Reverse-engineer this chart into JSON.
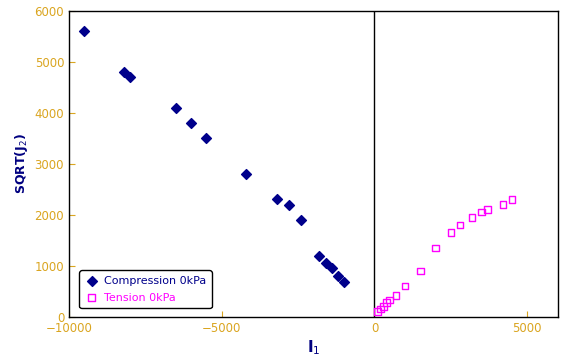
{
  "compression_x": [
    -9500,
    -8200,
    -8000,
    -6500,
    -6000,
    -5500,
    -4200,
    -3200,
    -2800,
    -2400,
    -1800,
    -1600,
    -1400,
    -1200,
    -1000
  ],
  "compression_y": [
    5600,
    4800,
    4700,
    4100,
    3800,
    3500,
    2800,
    2300,
    2200,
    1900,
    1200,
    1050,
    950,
    800,
    680
  ],
  "tension_x": [
    100,
    200,
    300,
    400,
    500,
    700,
    1000,
    1500,
    2000,
    2500,
    2800,
    3200,
    3500,
    3700,
    4200,
    4500
  ],
  "tension_y": [
    100,
    150,
    200,
    280,
    330,
    420,
    600,
    900,
    1350,
    1650,
    1800,
    1950,
    2050,
    2100,
    2200,
    2300
  ],
  "compression_color": "#00008B",
  "tension_color": "#FF00FF",
  "xlabel": "I$_1$",
  "ylabel": "SQRT(J$_2$)",
  "legend_compression": "Compression 0kPa",
  "legend_tension": "Tension 0kPa",
  "xlim": [
    -10000,
    6000
  ],
  "ylim": [
    0,
    6000
  ],
  "xticks": [
    -10000,
    -5000,
    0,
    5000
  ],
  "yticks": [
    0,
    1000,
    2000,
    3000,
    4000,
    5000,
    6000
  ],
  "background_color": "#ffffff",
  "tick_color": "#DAA520",
  "label_color": "#000080",
  "spine_color": "#000000"
}
